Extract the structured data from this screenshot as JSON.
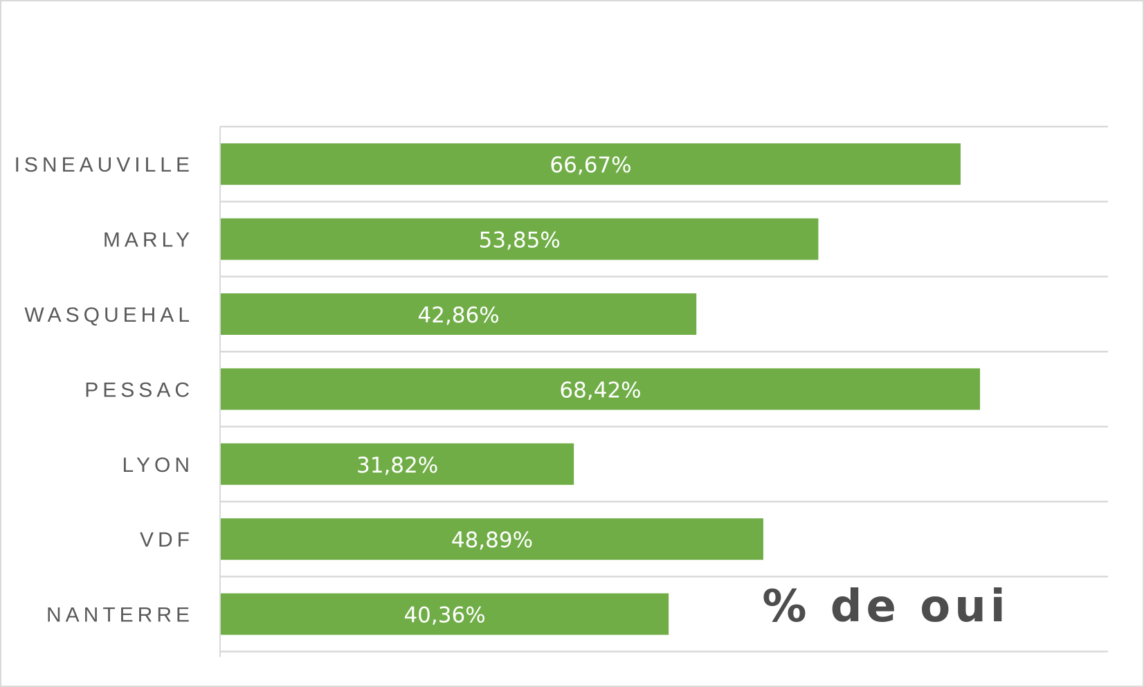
{
  "chart_data": {
    "type": "bar",
    "orientation": "horizontal",
    "title": "% de oui",
    "categories": [
      "ISNEAUVILLE",
      "MARLY",
      "WASQUEHAL",
      "PESSAC",
      "LYON",
      "VDF",
      "NANTERRE"
    ],
    "values": [
      66.67,
      53.85,
      42.86,
      68.42,
      31.82,
      48.89,
      40.36
    ],
    "value_labels": [
      "66,67%",
      "53,85%",
      "42,86%",
      "68,42%",
      "31,82%",
      "48,89%",
      "40,36%"
    ],
    "xlim": [
      0,
      80
    ],
    "xlabel": "",
    "ylabel": "",
    "grid": true,
    "legend": "none",
    "colors": {
      "bar": "#70ad47",
      "grid": "#d9d9d9",
      "category_text": "#595959",
      "title_text": "#4d4d4d",
      "data_label_text": "#ffffff"
    }
  }
}
